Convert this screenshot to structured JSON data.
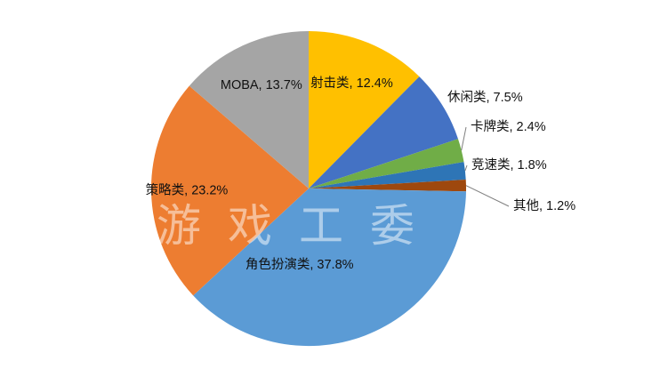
{
  "chart_data": {
    "type": "pie",
    "title": "",
    "watermark": "游戏工委",
    "start_angle_deg": 0,
    "direction": "clockwise",
    "legend": "none",
    "label_format": "{label}, {value}%",
    "slices": [
      {
        "label": "射击类",
        "value": 12.4,
        "color": "#FFC000",
        "label_text": "射击类, 12.4%"
      },
      {
        "label": "休闲类",
        "value": 7.5,
        "color": "#4472C4",
        "label_text": "休闲类, 7.5%"
      },
      {
        "label": "卡牌类",
        "value": 2.4,
        "color": "#70AD47",
        "label_text": "卡牌类, 2.4%"
      },
      {
        "label": "竞速类",
        "value": 1.8,
        "color": "#2E75B6",
        "label_text": "竞速类, 1.8%"
      },
      {
        "label": "其他",
        "value": 1.2,
        "color": "#9E480E",
        "label_text": "其他, 1.2%"
      },
      {
        "label": "角色扮演类",
        "value": 37.8,
        "color": "#5B9BD5",
        "label_text": "角色扮演类, 37.8%"
      },
      {
        "label": "策略类",
        "value": 23.2,
        "color": "#ED7D31",
        "label_text": "策略类, 23.2%"
      },
      {
        "label": "MOBA",
        "value": 13.7,
        "color": "#A5A5A5",
        "label_text": "MOBA, 13.7%"
      }
    ],
    "leader_line_color": "#7F7F7F"
  }
}
